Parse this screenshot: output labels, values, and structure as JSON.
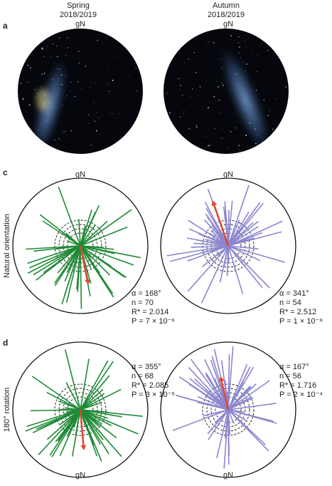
{
  "columns": [
    {
      "season": "Spring",
      "years": "2018/2019"
    },
    {
      "season": "Autumn",
      "years": "2018/2019"
    }
  ],
  "panel_a": {
    "letter": "a",
    "north_labels": [
      "gN",
      "gN"
    ]
  },
  "panel_c": {
    "letter": "c",
    "row_label": "Natural orientation",
    "north_labels": [
      "gN",
      "gN"
    ],
    "plots": [
      {
        "alpha": 168,
        "alpha_label": "α = 168°",
        "n_label": "n = 70",
        "R": 2.014,
        "R_label": "R* = 2.014",
        "P_label": "P = 7 × 10⁻⁶"
      },
      {
        "alpha": 341,
        "alpha_label": "α = 341°",
        "n_label": "n = 54",
        "R": 2.512,
        "R_label": "R* = 2.512",
        "P_label": "P = 1 × 10⁻⁹"
      }
    ]
  },
  "panel_d": {
    "letter": "d",
    "row_label": "180° rotation",
    "north_labels": [
      "gN",
      "gN"
    ],
    "plots": [
      {
        "alpha": 355,
        "alpha_label": "α = 355°",
        "n_label": "n = 68",
        "R": 2.085,
        "R_label": "R* = 2.085",
        "P_label": "P = 3 × 10⁻⁶"
      },
      {
        "alpha": 167,
        "alpha_label": "α = 167°",
        "n_label": "n = 56",
        "R": 1.716,
        "R_label": "R* = 1.716",
        "P_label": "P = 2 × 10⁻⁴"
      }
    ]
  }
}
